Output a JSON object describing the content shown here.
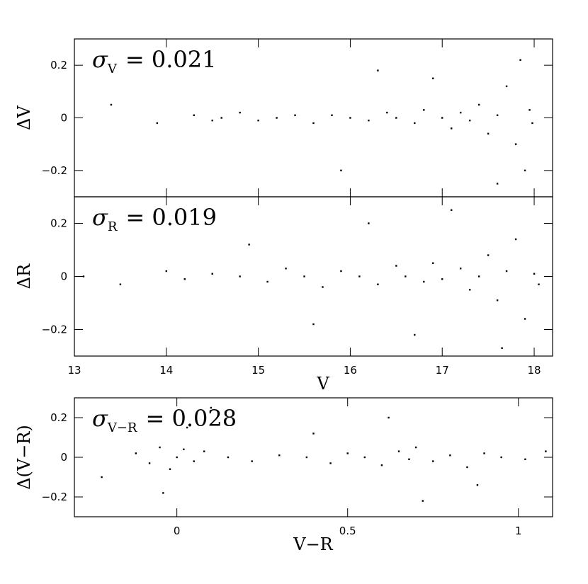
{
  "chart_data": [
    {
      "type": "scatter",
      "annotation": {
        "symbol": "σ",
        "subscript": "V",
        "text": "= 0.021"
      },
      "ylabel": "ΔV",
      "xlim": [
        13,
        18.2
      ],
      "ylim": [
        -0.3,
        0.3
      ],
      "xticks": [
        13,
        14,
        15,
        16,
        17,
        18
      ],
      "xtick_labels": false,
      "yticks": [
        {
          "value": -0.2,
          "label": "−0.2"
        },
        0,
        0.2
      ],
      "color": "#000000",
      "x": [
        13.4,
        13.9,
        14.3,
        14.5,
        14.6,
        14.8,
        15.0,
        15.2,
        15.4,
        15.6,
        15.8,
        16.0,
        16.2,
        16.4,
        16.5,
        16.7,
        16.8,
        17.0,
        17.1,
        17.2,
        17.3,
        17.4,
        17.5,
        17.6,
        17.7,
        17.8,
        17.85,
        17.9,
        17.95,
        17.98,
        16.9,
        17.6,
        15.9,
        16.3
      ],
      "y": [
        0.05,
        -0.02,
        0.01,
        -0.01,
        0.0,
        0.02,
        -0.01,
        0.0,
        0.01,
        -0.02,
        0.01,
        0.0,
        -0.01,
        0.02,
        0.0,
        -0.02,
        0.03,
        0.0,
        -0.04,
        0.02,
        -0.01,
        0.05,
        -0.06,
        0.01,
        0.12,
        -0.1,
        0.22,
        -0.2,
        0.03,
        -0.02,
        0.15,
        -0.25,
        -0.2,
        0.18
      ]
    },
    {
      "type": "scatter",
      "annotation": {
        "symbol": "σ",
        "subscript": "R",
        "text": "= 0.019"
      },
      "ylabel": "ΔR",
      "xlabel": "V",
      "xlim": [
        13,
        18.2
      ],
      "ylim": [
        -0.3,
        0.3
      ],
      "xticks": [
        13,
        14,
        15,
        16,
        17,
        18
      ],
      "xtick_labels": true,
      "yticks": [
        {
          "value": -0.2,
          "label": "−0.2"
        },
        0,
        0.2
      ],
      "color": "#000000",
      "x": [
        13.1,
        13.5,
        14.0,
        14.2,
        14.5,
        14.8,
        15.1,
        15.3,
        15.5,
        15.7,
        15.9,
        16.1,
        16.3,
        16.5,
        16.6,
        16.8,
        16.9,
        17.0,
        17.2,
        17.3,
        17.4,
        17.5,
        17.6,
        17.7,
        17.8,
        17.9,
        18.0,
        18.05,
        16.2,
        15.6,
        17.1,
        17.65,
        14.9,
        16.7
      ],
      "y": [
        0.0,
        -0.03,
        0.02,
        -0.01,
        0.01,
        0.0,
        -0.02,
        0.03,
        0.0,
        -0.04,
        0.02,
        0.0,
        -0.03,
        0.04,
        0.0,
        -0.02,
        0.05,
        -0.01,
        0.03,
        -0.05,
        0.0,
        0.08,
        -0.09,
        0.02,
        0.14,
        -0.16,
        0.01,
        -0.03,
        0.2,
        -0.18,
        0.25,
        -0.27,
        0.12,
        -0.22
      ]
    },
    {
      "type": "scatter",
      "annotation": {
        "symbol": "σ",
        "subscript": "V−R",
        "text": "= 0.028"
      },
      "ylabel": "Δ(V−R)",
      "xlabel": "V−R",
      "xlim": [
        -0.3,
        1.1
      ],
      "ylim": [
        -0.3,
        0.3
      ],
      "xticks": [
        0,
        0.5,
        1
      ],
      "xtick_labels": true,
      "yticks": [
        {
          "value": -0.2,
          "label": "−0.2"
        },
        0,
        0.2
      ],
      "color": "#000000",
      "x": [
        -0.22,
        -0.12,
        -0.08,
        -0.05,
        -0.02,
        0.0,
        0.02,
        0.05,
        0.08,
        0.15,
        0.22,
        0.3,
        0.38,
        0.45,
        0.5,
        0.55,
        0.6,
        0.65,
        0.68,
        0.7,
        0.75,
        0.8,
        0.85,
        0.9,
        0.95,
        1.02,
        1.08,
        0.03,
        -0.04,
        0.62,
        0.72,
        0.4,
        0.88,
        0.1
      ],
      "y": [
        -0.1,
        0.02,
        -0.03,
        0.05,
        -0.06,
        0.0,
        0.04,
        -0.02,
        0.03,
        0.0,
        -0.02,
        0.01,
        0.0,
        -0.03,
        0.02,
        0.0,
        -0.04,
        0.03,
        -0.01,
        0.05,
        -0.02,
        0.01,
        -0.05,
        0.02,
        0.0,
        -0.01,
        0.03,
        0.15,
        -0.18,
        0.2,
        -0.22,
        0.12,
        -0.14,
        0.25
      ]
    }
  ]
}
